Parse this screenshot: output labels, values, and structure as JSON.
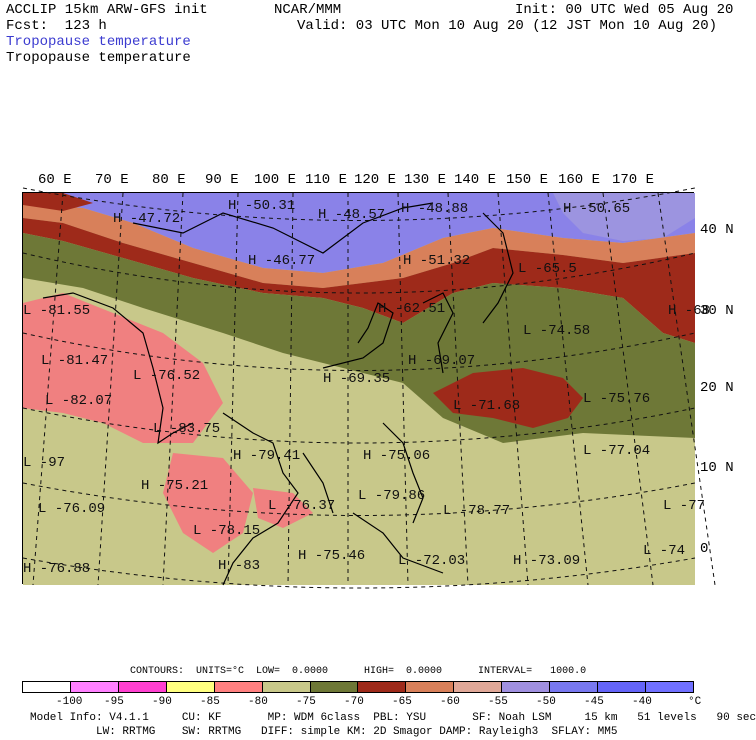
{
  "header": {
    "model": "ACCLIP 15km ARW-GFS init",
    "org": "NCAR/MMM",
    "init": "Init: 00 UTC Wed 05 Aug 20",
    "fcst": "Fcst:  123 h",
    "valid": "Valid: 03 UTC Mon 10 Aug 20 (12 JST Mon 10 Aug 20)",
    "field_blue": "Tropopause temperature",
    "field_black": "Tropopause temperature"
  },
  "longitudes": [
    "60 E",
    "70 E",
    "80 E",
    "90 E",
    "100 E",
    "110 E",
    "120 E",
    "130 E",
    "140 E",
    "150 E",
    "160 E",
    "170 E"
  ],
  "latitudes": [
    "40 N",
    "30 N",
    "20 N",
    "10 N",
    "0"
  ],
  "map_labels": [
    {
      "mark": "H",
      "value": "-47.72"
    },
    {
      "mark": "H",
      "value": "-50.31"
    },
    {
      "mark": "H",
      "value": "-48.57"
    },
    {
      "mark": "H",
      "value": "-48.88"
    },
    {
      "mark": "H",
      "value": "-50.65"
    },
    {
      "mark": "H",
      "value": "-46.77"
    },
    {
      "mark": "H",
      "value": "-51.32"
    },
    {
      "mark": "L",
      "value": "-65.5"
    },
    {
      "mark": "H",
      "value": "-62.51"
    },
    {
      "mark": "H",
      "value": "-68"
    },
    {
      "mark": "L",
      "value": "-74.58"
    },
    {
      "mark": "L",
      "value": "-81.55"
    },
    {
      "mark": "L",
      "value": "-81.47"
    },
    {
      "mark": "L",
      "value": "-76.52"
    },
    {
      "mark": "H",
      "value": "-69.07"
    },
    {
      "mark": "H",
      "value": "-69.35"
    },
    {
      "mark": "L",
      "value": "-82.07"
    },
    {
      "mark": "L",
      "value": "-83.75"
    },
    {
      "mark": "L",
      "value": "-71.68"
    },
    {
      "mark": "L",
      "value": "-75.76"
    },
    {
      "mark": "L",
      "value": "-77.04"
    },
    {
      "mark": "H",
      "value": "-79.41"
    },
    {
      "mark": "H",
      "value": "-75.06"
    },
    {
      "mark": "H",
      "value": "-75.21"
    },
    {
      "mark": "L",
      "value": "-97"
    },
    {
      "mark": "L",
      "value": "-76.09"
    },
    {
      "mark": "L",
      "value": "-76.37"
    },
    {
      "mark": "L",
      "value": "-79.86"
    },
    {
      "mark": "L",
      "value": "-78.77"
    },
    {
      "mark": "L",
      "value": "-77"
    },
    {
      "mark": "L",
      "value": "-78.15"
    },
    {
      "mark": "H",
      "value": "-75.46"
    },
    {
      "mark": "L",
      "value": "-72.03"
    },
    {
      "mark": "H",
      "value": "-73.09"
    },
    {
      "mark": "L",
      "value": "-74"
    },
    {
      "mark": "H",
      "value": "-76.88"
    },
    {
      "mark": "H",
      "value": "-83"
    }
  ],
  "contours": {
    "units_text": "CONTOURS:  UNITS=°C  LOW=  0.0000      HIGH=  0.0000      INTERVAL=   1000.0"
  },
  "colorbar": {
    "colors": [
      "#ffffff",
      "#ff80ff",
      "#ff40d0",
      "#ffff80",
      "#ff8080",
      "#c8c88a",
      "#6e7837",
      "#9e2a1a",
      "#d8805a",
      "#e0a898",
      "#a090e0",
      "#7878f0",
      "#6464f8",
      "#7070ff"
    ],
    "ticks": [
      "-100",
      "-95",
      "-90",
      "-85",
      "-80",
      "-75",
      "-70",
      "-65",
      "-60",
      "-55",
      "-50",
      "-45",
      "-40"
    ],
    "unit": "°C"
  },
  "footer": {
    "line1": "Model Info: V4.1.1     CU: KF       MP: WDM 6class  PBL: YSU       SF: Noah LSM     15 km   51 levels   90 sec",
    "line2": "LW: RRTMG    SW: RRTMG   DIFF: simple KM: 2D Smagor DAMP: Rayleigh3  SFLAY: MM5"
  }
}
